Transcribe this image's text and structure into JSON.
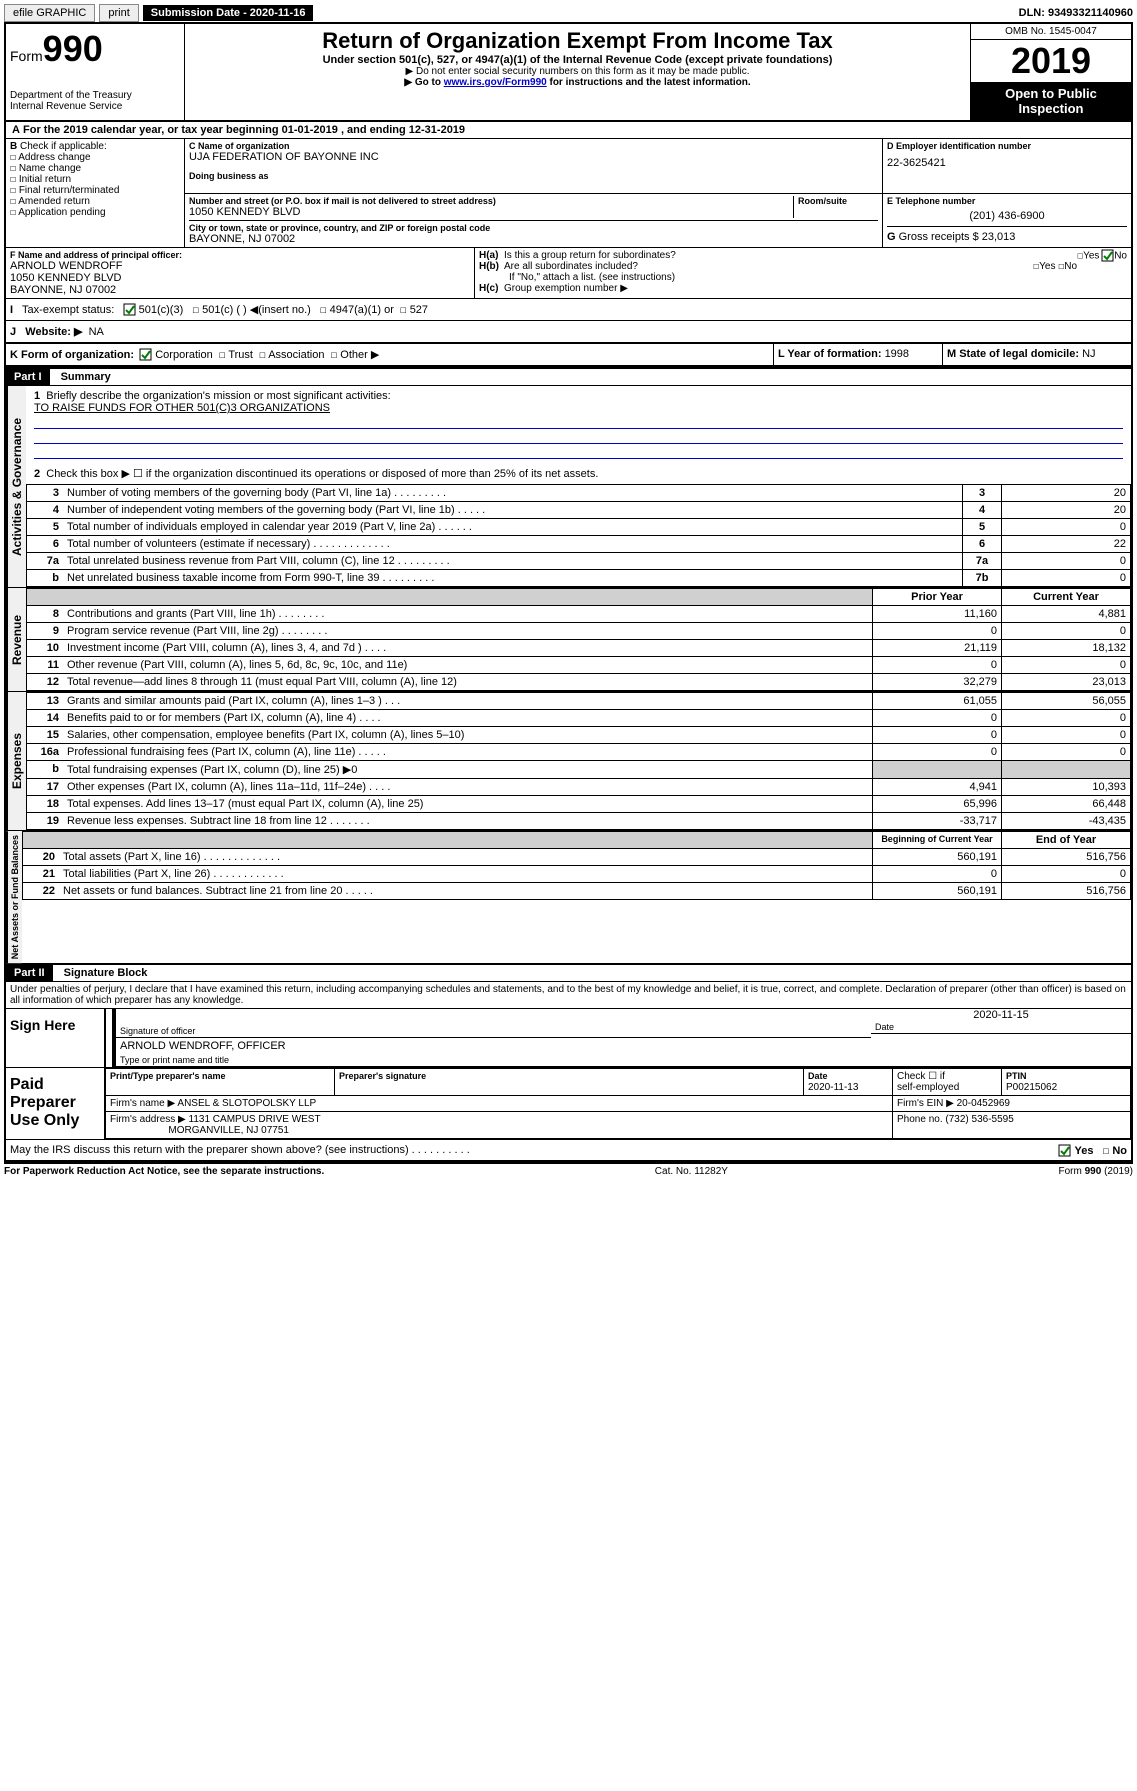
{
  "topbar": {
    "efile": "efile GRAPHIC",
    "print": "print",
    "subdate_label": "Submission Date - 2020-11-16",
    "dln": "DLN: 93493321140960"
  },
  "header": {
    "form_prefix": "Form",
    "form_num": "990",
    "dept": "Department of the Treasury",
    "irs": "Internal Revenue Service",
    "title": "Return of Organization Exempt From Income Tax",
    "sub1": "Under section 501(c), 527, or 4947(a)(1) of the Internal Revenue Code (except private foundations)",
    "sub2": "▶ Do not enter social security numbers on this form as it may be made public.",
    "sub3_a": "▶ Go to ",
    "sub3_link": "www.irs.gov/Form990",
    "sub3_b": " for instructions and the latest information.",
    "omb": "OMB No. 1545-0047",
    "year": "2019",
    "otp": "Open to Public Inspection"
  },
  "a_line": "For the 2019 calendar year, or tax year beginning 01-01-2019   , and ending 12-31-2019",
  "b": {
    "label": "Check if applicable:",
    "opts": [
      "Address change",
      "Name change",
      "Initial return",
      "Final return/terminated",
      "Amended return",
      "Application pending"
    ]
  },
  "c": {
    "name_lbl": "C Name of organization",
    "name": "UJA FEDERATION OF BAYONNE INC",
    "dba_lbl": "Doing business as",
    "street_lbl": "Number and street (or P.O. box if mail is not delivered to street address)",
    "room_lbl": "Room/suite",
    "street": "1050 KENNEDY BLVD",
    "city_lbl": "City or town, state or province, country, and ZIP or foreign postal code",
    "city": "BAYONNE, NJ  07002"
  },
  "d": {
    "lbl": "D Employer identification number",
    "val": "22-3625421"
  },
  "e": {
    "lbl": "E Telephone number",
    "val": "(201) 436-6900"
  },
  "g": {
    "lbl": "G",
    "text": "Gross receipts $ 23,013"
  },
  "f": {
    "lbl": "F  Name and address of principal officer:",
    "name": "ARNOLD WENDROFF",
    "street": "1050 KENNEDY BLVD",
    "city": "BAYONNE, NJ  07002"
  },
  "h": {
    "a": "Is this a group return for subordinates?",
    "b": "Are all subordinates included?",
    "note": "If \"No,\" attach a list. (see instructions)",
    "c": "Group exemption number ▶"
  },
  "i": {
    "lbl": "Tax-exempt status:",
    "c3": "501(c)(3)",
    "c": "501(c) (  ) ◀(insert no.)",
    "a1": "4947(a)(1) or",
    "527": "527"
  },
  "j": {
    "lbl": "Website: ▶",
    "val": "NA"
  },
  "k": {
    "lbl": "K Form of organization:",
    "corp": "Corporation",
    "trust": "Trust",
    "assoc": "Association",
    "other": "Other ▶"
  },
  "l": {
    "lbl": "L Year of formation: ",
    "val": "1998"
  },
  "m": {
    "lbl": "M State of legal domicile: ",
    "val": "NJ"
  },
  "part1": {
    "title": "Part I",
    "sub": "Summary"
  },
  "summary": {
    "q1": "Briefly describe the organization's mission or most significant activities:",
    "mission": "TO RAISE FUNDS FOR OTHER 501(C)3 ORGANIZATIONS",
    "q2": "Check this box ▶ ☐  if the organization discontinued its operations or disposed of more than 25% of its net assets.",
    "lines_gov": [
      {
        "n": "3",
        "d": "Number of voting members of the governing body (Part VI, line 1a)  .   .   .   .   .   .   .   .   .",
        "c": "3",
        "v": "20"
      },
      {
        "n": "4",
        "d": "Number of independent voting members of the governing body (Part VI, line 1b)   .   .   .   .   .",
        "c": "4",
        "v": "20"
      },
      {
        "n": "5",
        "d": "Total number of individuals employed in calendar year 2019 (Part V, line 2a)   .   .   .   .   .   .",
        "c": "5",
        "v": "0"
      },
      {
        "n": "6",
        "d": "Total number of volunteers (estimate if necessary)   .   .   .   .   .   .   .   .   .   .   .   .   .",
        "c": "6",
        "v": "22"
      },
      {
        "n": "7a",
        "d": "Total unrelated business revenue from Part VIII, column (C), line 12   .   .   .   .   .   .   .   .   .",
        "c": "7a",
        "v": "0"
      },
      {
        "n": "b",
        "d": "Net unrelated business taxable income from Form 990-T, line 39   .   .   .   .   .   .   .   .   .",
        "c": "7b",
        "v": "0"
      }
    ],
    "colhdr_prior": "Prior Year",
    "colhdr_curr": "Current Year",
    "lines_rev": [
      {
        "n": "8",
        "d": "Contributions and grants (Part VIII, line 1h)   .   .   .   .   .   .   .   .",
        "p": "11,160",
        "c": "4,881"
      },
      {
        "n": "9",
        "d": "Program service revenue (Part VIII, line 2g)   .   .   .   .   .   .   .   .",
        "p": "0",
        "c": "0"
      },
      {
        "n": "10",
        "d": "Investment income (Part VIII, column (A), lines 3, 4, and 7d )   .   .   .   .",
        "p": "21,119",
        "c": "18,132"
      },
      {
        "n": "11",
        "d": "Other revenue (Part VIII, column (A), lines 5, 6d, 8c, 9c, 10c, and 11e)",
        "p": "0",
        "c": "0"
      },
      {
        "n": "12",
        "d": "Total revenue—add lines 8 through 11 (must equal Part VIII, column (A), line 12)",
        "p": "32,279",
        "c": "23,013"
      }
    ],
    "lines_exp": [
      {
        "n": "13",
        "d": "Grants and similar amounts paid (Part IX, column (A), lines 1–3 )   .   .   .",
        "p": "61,055",
        "c": "56,055"
      },
      {
        "n": "14",
        "d": "Benefits paid to or for members (Part IX, column (A), line 4)   .   .   .   .",
        "p": "0",
        "c": "0"
      },
      {
        "n": "15",
        "d": "Salaries, other compensation, employee benefits (Part IX, column (A), lines 5–10)",
        "p": "0",
        "c": "0"
      },
      {
        "n": "16a",
        "d": "Professional fundraising fees (Part IX, column (A), line 11e)   .   .   .   .   .",
        "p": "0",
        "c": "0"
      },
      {
        "n": "b",
        "d": "Total fundraising expenses (Part IX, column (D), line 25) ▶0",
        "p": "",
        "c": ""
      },
      {
        "n": "17",
        "d": "Other expenses (Part IX, column (A), lines 11a–11d, 11f–24e)   .   .   .   .",
        "p": "4,941",
        "c": "10,393"
      },
      {
        "n": "18",
        "d": "Total expenses. Add lines 13–17 (must equal Part IX, column (A), line 25)",
        "p": "65,996",
        "c": "66,448"
      },
      {
        "n": "19",
        "d": "Revenue less expenses. Subtract line 18 from line 12   .   .   .   .   .   .   .",
        "p": "-33,717",
        "c": "-43,435"
      }
    ],
    "colhdr_beg": "Beginning of Current Year",
    "colhdr_end": "End of Year",
    "lines_na": [
      {
        "n": "20",
        "d": "Total assets (Part X, line 16)   .   .   .   .   .   .   .   .   .   .   .   .   .",
        "p": "560,191",
        "c": "516,756"
      },
      {
        "n": "21",
        "d": "Total liabilities (Part X, line 26)   .   .   .   .   .   .   .   .   .   .   .   .",
        "p": "0",
        "c": "0"
      },
      {
        "n": "22",
        "d": "Net assets or fund balances. Subtract line 21 from line 20   .   .   .   .   .",
        "p": "560,191",
        "c": "516,756"
      }
    ]
  },
  "vtabs": {
    "gov": "Activities & Governance",
    "rev": "Revenue",
    "exp": "Expenses",
    "na": "Net Assets or Fund Balances"
  },
  "part2": {
    "title": "Part II",
    "sub": "Signature Block"
  },
  "perjury": "Under penalties of perjury, I declare that I have examined this return, including accompanying schedules and statements, and to the best of my knowledge and belief, it is true, correct, and complete. Declaration of preparer (other than officer) is based on all information of which preparer has any knowledge.",
  "sign": {
    "here": "Sign Here",
    "sig_lbl": "Signature of officer",
    "date": "2020-11-15",
    "date_lbl": "Date",
    "name": "ARNOLD WENDROFF, OFFICER",
    "name_lbl": "Type or print name and title"
  },
  "paid": {
    "title": "Paid Preparer Use Only",
    "col1": "Print/Type preparer's name",
    "col2": "Preparer's signature",
    "col3": "Date",
    "date": "2020-11-13",
    "col4a": "Check ☐ if",
    "col4b": "self-employed",
    "col5": "PTIN",
    "ptin": "P00215062",
    "firm_lbl": "Firm's name    ▶",
    "firm": "ANSEL & SLOTOPOLSKY LLP",
    "ein_lbl": "Firm's EIN ▶",
    "ein": "20-0452969",
    "addr_lbl": "Firm's address ▶",
    "addr1": "1131 CAMPUS DRIVE WEST",
    "addr2": "MORGANVILLE, NJ  07751",
    "phone_lbl": "Phone no.",
    "phone": "(732) 536-5595"
  },
  "discuss": "May the IRS discuss this return with the preparer shown above? (see instructions)    .   .   .   .   .   .   .   .   .   .",
  "yes": "Yes",
  "no": "No",
  "footer": {
    "pra": "For Paperwork Reduction Act Notice, see the separate instructions.",
    "cat": "Cat. No. 11282Y",
    "form": "Form 990 (2019)"
  }
}
